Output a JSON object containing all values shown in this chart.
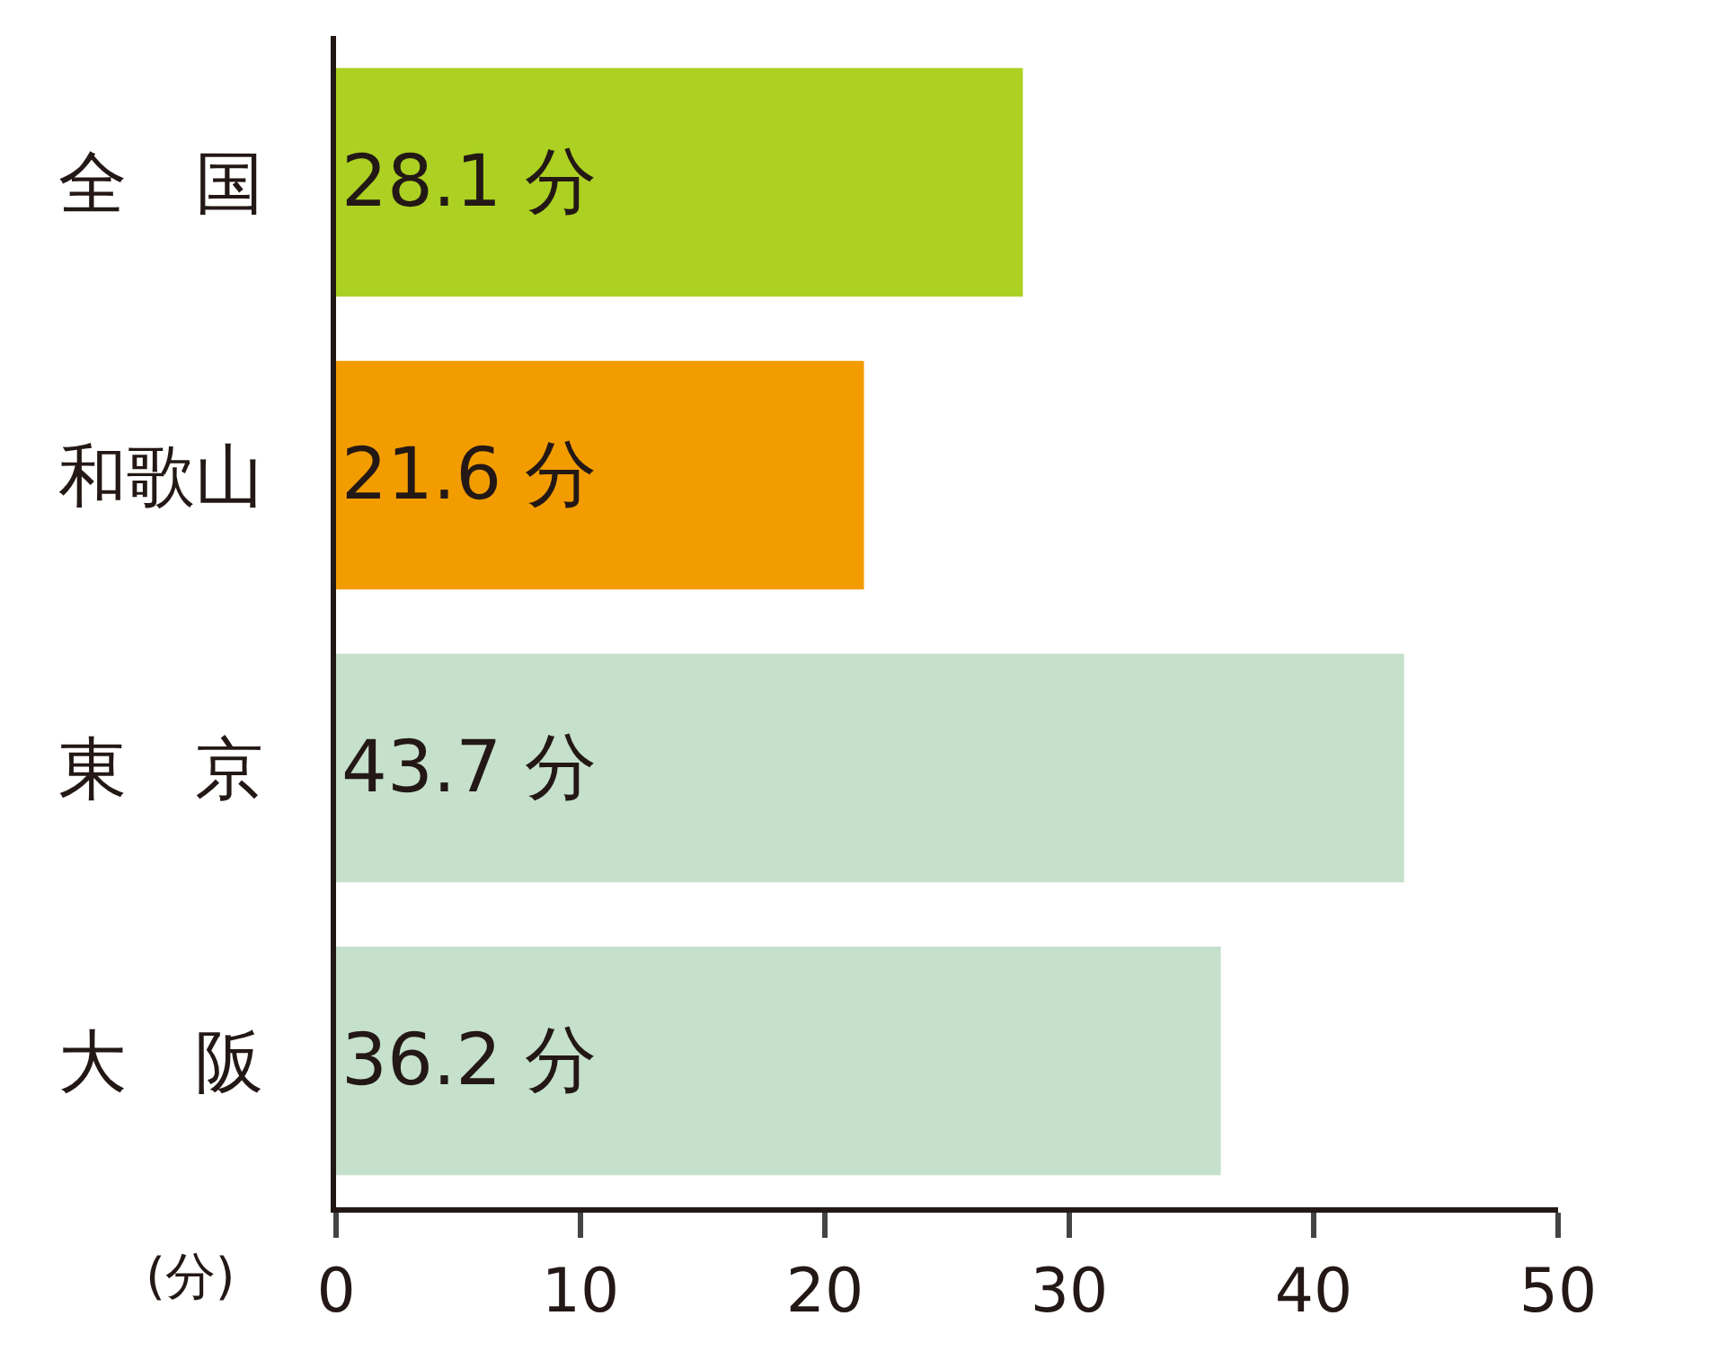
{
  "chart_data": {
    "type": "bar",
    "orientation": "horizontal",
    "categories": [
      "全　国",
      "和歌山",
      "東　京",
      "大　阪"
    ],
    "values": [
      28.1,
      21.6,
      43.7,
      36.2
    ],
    "colors": [
      "#acd122",
      "#f29c00",
      "#c5e0cb",
      "#c5e0cb"
    ],
    "value_labels": [
      "28.1 分",
      "21.6 分",
      "43.7 分",
      "36.2 分"
    ],
    "xlabel": "(分)",
    "xlim": [
      0,
      50
    ],
    "xticks": [
      0,
      10,
      20,
      30,
      40,
      50
    ],
    "grid": false
  }
}
